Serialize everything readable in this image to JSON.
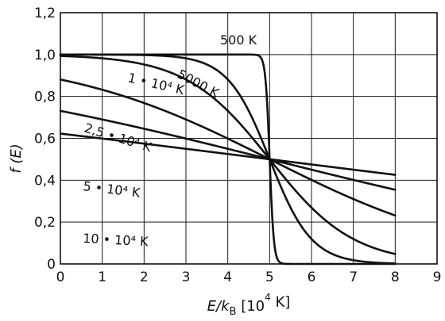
{
  "chart_data": {
    "type": "line",
    "xlabel": "E/k_B [10^4 K]",
    "ylabel": "f (E)",
    "xlim": [
      0,
      9
    ],
    "ylim": [
      0,
      1.2
    ],
    "x_ticks": [
      "0",
      "1",
      "2",
      "3",
      "4",
      "5",
      "6",
      "7",
      "8",
      "9"
    ],
    "y_ticks": [
      "0",
      "0,2",
      "0,4",
      "0,6",
      "0,8",
      "1,0",
      "1,2"
    ],
    "grid": true,
    "mu": 5,
    "x_range_of_curves": [
      0,
      8
    ],
    "series": [
      {
        "name": "500 K",
        "label_text": "500 K",
        "temperature_1e4K": 0.05
      },
      {
        "name": "5000 K",
        "label_text": "5000 K",
        "temperature_1e4K": 0.5
      },
      {
        "name": "1 • 10^4 K",
        "label_text": "1 • 10⁴ K",
        "temperature_1e4K": 1
      },
      {
        "name": "2,5 • 10^4 K",
        "label_text": "2,5 • 10⁴ K",
        "temperature_1e4K": 2.5
      },
      {
        "name": "5 • 10^4 K",
        "label_text": "5 • 10⁴ K",
        "temperature_1e4K": 5
      },
      {
        "name": "10 • 10^4 K",
        "label_text": "10 • 10⁴ K",
        "temperature_1e4K": 10
      }
    ]
  }
}
